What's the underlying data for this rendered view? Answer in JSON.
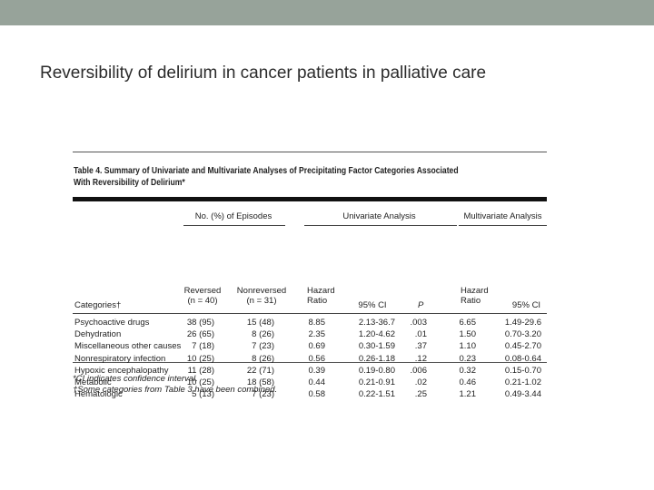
{
  "slide": {
    "title": "Reversibility of delirium in cancer patients in palliative care"
  },
  "table": {
    "caption_line1": "Table 4. Summary of Univariate and Multivariate Analyses of Precipitating Factor Categories Associated",
    "caption_line2": "With Reversibility of Delirium*",
    "group_headers": {
      "episodes": "No. (%) of Episodes",
      "univariate": "Univariate Analysis",
      "multivariate": "Multivariate Analysis"
    },
    "columns": {
      "categories": "Categories†",
      "reversed": [
        "Reversed",
        "(n = 40)"
      ],
      "nonreversed": [
        "Nonreversed",
        "(n = 31)"
      ],
      "uni_hr": [
        "Hazard",
        "Ratio"
      ],
      "uni_ci": "95% CI",
      "p": "P",
      "multi_hr": [
        "Hazard",
        "Ratio"
      ],
      "multi_ci": "95% CI"
    },
    "rows": [
      {
        "category": "Psychoactive drugs",
        "reversed": "38 (95)",
        "nonreversed": "15 (48)",
        "uni_hr": "8.85",
        "uni_ci": "2.13-36.7",
        "p": ".003",
        "multi_hr": "6.65",
        "multi_ci": "1.49-29.6"
      },
      {
        "category": "Dehydration",
        "reversed": "26 (65)",
        "nonreversed": "8 (26)",
        "uni_hr": "2.35",
        "uni_ci": "1.20-4.62",
        "p": ".01",
        "multi_hr": "1.50",
        "multi_ci": "0.70-3.20"
      },
      {
        "category": "Miscellaneous other causes",
        "reversed": "7 (18)",
        "nonreversed": "7 (23)",
        "uni_hr": "0.69",
        "uni_ci": "0.30-1.59",
        "p": ".37",
        "multi_hr": "1.10",
        "multi_ci": "0.45-2.70"
      },
      {
        "category": "Nonrespiratory infection",
        "reversed": "10 (25)",
        "nonreversed": "8 (26)",
        "uni_hr": "0.56",
        "uni_ci": "0.26-1.18",
        "p": ".12",
        "multi_hr": "0.23",
        "multi_ci": "0.08-0.64"
      },
      {
        "category": "Hypoxic encephalopathy",
        "reversed": "11 (28)",
        "nonreversed": "22 (71)",
        "uni_hr": "0.39",
        "uni_ci": "0.19-0.80",
        "p": ".006",
        "multi_hr": "0.32",
        "multi_ci": "0.15-0.70"
      },
      {
        "category": "Metabolic",
        "reversed": "10 (25)",
        "nonreversed": "18 (58)",
        "uni_hr": "0.44",
        "uni_ci": "0.21-0.91",
        "p": ".02",
        "multi_hr": "0.46",
        "multi_ci": "0.21-1.02"
      },
      {
        "category": "Hematologic",
        "reversed": "5 (13)",
        "nonreversed": "7 (23)",
        "uni_hr": "0.58",
        "uni_ci": "0.22-1.51",
        "p": ".25",
        "multi_hr": "1.21",
        "multi_ci": "0.49-3.44"
      }
    ],
    "footnotes": [
      "*CI indicates confidence interval.",
      "†Some categories from Table 3 have been combined."
    ]
  }
}
